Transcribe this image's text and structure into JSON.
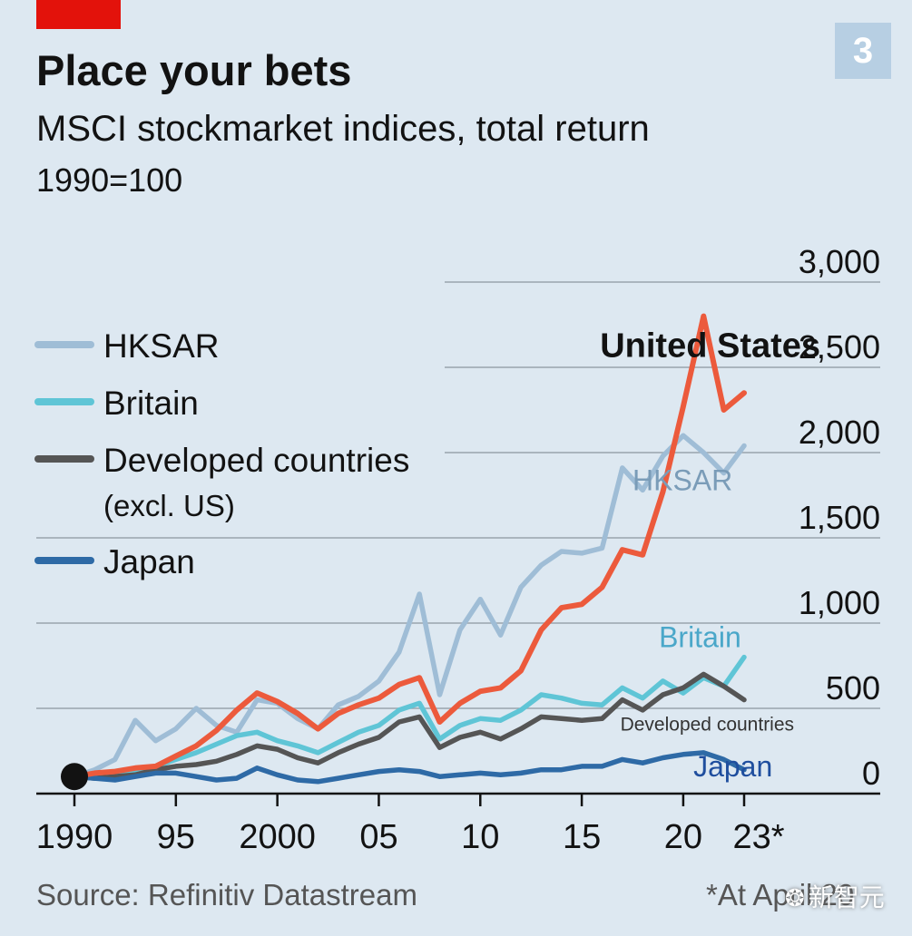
{
  "header": {
    "badge": "3",
    "title": "Place your bets",
    "subtitle": "MSCI stockmarket indices, total return",
    "unit": "1990=100"
  },
  "footer": {
    "source": "Source: Refinitiv Datastream",
    "footnote": "*At April 20",
    "watermark": "新智元",
    "watermark_icon": "wechat-icon"
  },
  "colors": {
    "background": "#dde8f1",
    "hksar": "#9fbdd6",
    "britain": "#5fc5d6",
    "developed": "#555555",
    "japan": "#2e6aa6",
    "united_states": "#ec5a3c",
    "accent_red": "#e3120b"
  },
  "chart_data": {
    "type": "line",
    "x_tick_labels": [
      "1990",
      "95",
      "2000",
      "05",
      "10",
      "15",
      "20",
      "23*"
    ],
    "y_tick_labels": [
      "0",
      "500",
      "1,000",
      "1,500",
      "2,000",
      "2,500",
      "3,000"
    ],
    "y_ticks": [
      0,
      500,
      1000,
      1500,
      2000,
      2500,
      3000
    ],
    "ylim": [
      0,
      3000
    ],
    "xlim": [
      1990,
      2023
    ],
    "grid": true,
    "legend_position": "left",
    "legend": [
      {
        "name": "HKSAR",
        "color": "#9fbdd6"
      },
      {
        "name": "Britain",
        "color": "#5fc5d6"
      },
      {
        "name": "Developed countries",
        "subname": "(excl. US)",
        "color": "#555555"
      },
      {
        "name": "Japan",
        "color": "#2e6aa6"
      }
    ],
    "annotations": [
      {
        "text": "United States",
        "year": 2015.9,
        "value": 2560,
        "color": "#121212",
        "bold": true
      },
      {
        "text": "HKSAR",
        "year": 2017.5,
        "value": 1780,
        "color": "#7a9cb8",
        "bold": false
      },
      {
        "text": "Britain",
        "year": 2018.8,
        "value": 860,
        "color": "#4aa7c9",
        "bold": false
      },
      {
        "text": "Developed countries",
        "year": 2016.9,
        "value": 370,
        "color": "#333333",
        "bold": false
      },
      {
        "text": "Japan",
        "year": 2020.5,
        "value": 100,
        "color": "#1f4e9e",
        "bold": false
      }
    ],
    "origin_point": {
      "x": 1990,
      "y": 100
    },
    "series": [
      {
        "name": "HKSAR",
        "color": "#9fbdd6",
        "x": [
          1990,
          1991,
          1992,
          1993,
          1994,
          1995,
          1996,
          1997,
          1998,
          1999,
          2000,
          2001,
          2002,
          2003,
          2004,
          2005,
          2006,
          2007,
          2008,
          2009,
          2010,
          2011,
          2012,
          2013,
          2014,
          2015,
          2016,
          2017,
          2018,
          2019,
          2020,
          2021,
          2022,
          2023
        ],
        "y": [
          100,
          140,
          200,
          430,
          310,
          380,
          500,
          400,
          360,
          550,
          530,
          440,
          380,
          520,
          570,
          660,
          830,
          1170,
          580,
          960,
          1140,
          930,
          1210,
          1340,
          1420,
          1410,
          1440,
          1910,
          1780,
          1980,
          2100,
          2000,
          1880,
          2040
        ]
      },
      {
        "name": "United States",
        "color": "#ec5a3c",
        "x": [
          1990,
          1991,
          1992,
          1993,
          1994,
          1995,
          1996,
          1997,
          1998,
          1999,
          2000,
          2001,
          2002,
          2003,
          2004,
          2005,
          2006,
          2007,
          2008,
          2009,
          2010,
          2011,
          2012,
          2013,
          2014,
          2015,
          2016,
          2017,
          2018,
          2019,
          2020,
          2021,
          2022,
          2023
        ],
        "y": [
          100,
          120,
          130,
          150,
          160,
          220,
          280,
          370,
          490,
          590,
          540,
          470,
          380,
          470,
          520,
          560,
          640,
          680,
          420,
          530,
          600,
          620,
          720,
          960,
          1090,
          1110,
          1210,
          1430,
          1400,
          1770,
          2270,
          2800,
          2250,
          2350
        ]
      },
      {
        "name": "Britain",
        "color": "#5fc5d6",
        "x": [
          1990,
          1991,
          1992,
          1993,
          1994,
          1995,
          1996,
          1997,
          1998,
          1999,
          2000,
          2001,
          2002,
          2003,
          2004,
          2005,
          2006,
          2007,
          2008,
          2009,
          2010,
          2011,
          2012,
          2013,
          2014,
          2015,
          2016,
          2017,
          2018,
          2019,
          2020,
          2021,
          2022,
          2023
        ],
        "y": [
          100,
          110,
          120,
          130,
          160,
          200,
          240,
          290,
          340,
          360,
          310,
          280,
          240,
          300,
          360,
          400,
          490,
          530,
          320,
          400,
          440,
          430,
          490,
          580,
          560,
          530,
          520,
          620,
          560,
          660,
          590,
          680,
          630,
          800
        ]
      },
      {
        "name": "Developed countries",
        "color": "#555555",
        "x": [
          1990,
          1991,
          1992,
          1993,
          1994,
          1995,
          1996,
          1997,
          1998,
          1999,
          2000,
          2001,
          2002,
          2003,
          2004,
          2005,
          2006,
          2007,
          2008,
          2009,
          2010,
          2011,
          2012,
          2013,
          2014,
          2015,
          2016,
          2017,
          2018,
          2019,
          2020,
          2021,
          2022,
          2023
        ],
        "y": [
          100,
          90,
          100,
          110,
          140,
          160,
          170,
          190,
          230,
          280,
          260,
          210,
          180,
          240,
          290,
          330,
          420,
          450,
          270,
          330,
          360,
          320,
          380,
          450,
          440,
          430,
          440,
          550,
          490,
          580,
          620,
          700,
          630,
          550
        ]
      },
      {
        "name": "Japan",
        "color": "#2e6aa6",
        "x": [
          1990,
          1991,
          1992,
          1993,
          1994,
          1995,
          1996,
          1997,
          1998,
          1999,
          2000,
          2001,
          2002,
          2003,
          2004,
          2005,
          2006,
          2007,
          2008,
          2009,
          2010,
          2011,
          2012,
          2013,
          2014,
          2015,
          2016,
          2017,
          2018,
          2019,
          2020,
          2021,
          2022,
          2023
        ],
        "y": [
          100,
          90,
          80,
          100,
          120,
          120,
          100,
          80,
          90,
          150,
          110,
          80,
          70,
          90,
          110,
          130,
          140,
          130,
          100,
          110,
          120,
          110,
          120,
          140,
          140,
          160,
          160,
          200,
          180,
          210,
          230,
          240,
          200,
          140
        ]
      }
    ]
  }
}
